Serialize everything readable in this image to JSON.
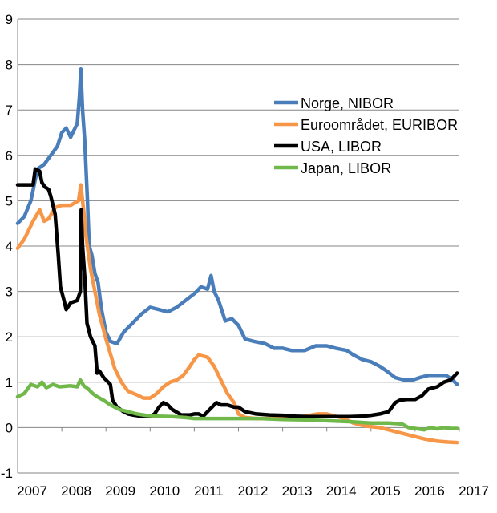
{
  "chart_data": {
    "type": "line",
    "title": "",
    "xlabel": "",
    "ylabel": "",
    "xlim": [
      2007,
      2017
    ],
    "ylim": [
      -1,
      9
    ],
    "yticks": [
      "-1",
      "0",
      "1",
      "2",
      "3",
      "4",
      "5",
      "6",
      "7",
      "8",
      "9"
    ],
    "xticks": [
      "2007",
      "2008",
      "2009",
      "2010",
      "2011",
      "2012",
      "2013",
      "2014",
      "2015",
      "2016",
      "2017"
    ],
    "grid": "horizontal",
    "legend_position": "upper-right",
    "series": [
      {
        "name": "Norge, NIBOR",
        "color": "#4a7ebb",
        "points": [
          [
            2007.0,
            4.5
          ],
          [
            2007.15,
            4.65
          ],
          [
            2007.3,
            5.0
          ],
          [
            2007.45,
            5.7
          ],
          [
            2007.6,
            5.8
          ],
          [
            2007.75,
            6.0
          ],
          [
            2007.9,
            6.2
          ],
          [
            2008.0,
            6.5
          ],
          [
            2008.1,
            6.6
          ],
          [
            2008.2,
            6.4
          ],
          [
            2008.3,
            6.6
          ],
          [
            2008.35,
            6.7
          ],
          [
            2008.4,
            7.3
          ],
          [
            2008.43,
            7.9
          ],
          [
            2008.47,
            7.0
          ],
          [
            2008.52,
            6.3
          ],
          [
            2008.58,
            5.0
          ],
          [
            2008.62,
            4.0
          ],
          [
            2008.68,
            3.8
          ],
          [
            2008.75,
            3.4
          ],
          [
            2008.82,
            3.2
          ],
          [
            2008.9,
            2.6
          ],
          [
            2009.0,
            2.1
          ],
          [
            2009.1,
            1.9
          ],
          [
            2009.25,
            1.85
          ],
          [
            2009.4,
            2.1
          ],
          [
            2009.6,
            2.3
          ],
          [
            2009.8,
            2.5
          ],
          [
            2010.0,
            2.65
          ],
          [
            2010.2,
            2.6
          ],
          [
            2010.4,
            2.55
          ],
          [
            2010.6,
            2.65
          ],
          [
            2010.8,
            2.8
          ],
          [
            2011.0,
            2.95
          ],
          [
            2011.15,
            3.1
          ],
          [
            2011.3,
            3.05
          ],
          [
            2011.38,
            3.35
          ],
          [
            2011.45,
            3.0
          ],
          [
            2011.55,
            2.8
          ],
          [
            2011.7,
            2.35
          ],
          [
            2011.85,
            2.4
          ],
          [
            2012.0,
            2.25
          ],
          [
            2012.15,
            1.95
          ],
          [
            2012.35,
            1.9
          ],
          [
            2012.6,
            1.85
          ],
          [
            2012.8,
            1.75
          ],
          [
            2013.0,
            1.75
          ],
          [
            2013.2,
            1.7
          ],
          [
            2013.5,
            1.7
          ],
          [
            2013.75,
            1.8
          ],
          [
            2014.0,
            1.8
          ],
          [
            2014.2,
            1.75
          ],
          [
            2014.45,
            1.7
          ],
          [
            2014.6,
            1.6
          ],
          [
            2014.8,
            1.5
          ],
          [
            2015.0,
            1.45
          ],
          [
            2015.2,
            1.35
          ],
          [
            2015.35,
            1.25
          ],
          [
            2015.55,
            1.1
          ],
          [
            2015.75,
            1.05
          ],
          [
            2015.95,
            1.05
          ],
          [
            2016.1,
            1.1
          ],
          [
            2016.3,
            1.15
          ],
          [
            2016.5,
            1.15
          ],
          [
            2016.7,
            1.15
          ],
          [
            2016.85,
            1.05
          ],
          [
            2016.95,
            0.95
          ]
        ]
      },
      {
        "name": "Euroområdet, EURIBOR",
        "color": "#f79646",
        "points": [
          [
            2007.0,
            3.95
          ],
          [
            2007.15,
            4.15
          ],
          [
            2007.35,
            4.55
          ],
          [
            2007.5,
            4.8
          ],
          [
            2007.6,
            4.55
          ],
          [
            2007.7,
            4.6
          ],
          [
            2007.85,
            4.85
          ],
          [
            2008.0,
            4.9
          ],
          [
            2008.2,
            4.9
          ],
          [
            2008.38,
            5.0
          ],
          [
            2008.43,
            5.35
          ],
          [
            2008.5,
            4.75
          ],
          [
            2008.55,
            4.2
          ],
          [
            2008.65,
            3.5
          ],
          [
            2008.75,
            3.0
          ],
          [
            2008.85,
            2.5
          ],
          [
            2009.0,
            1.95
          ],
          [
            2009.2,
            1.3
          ],
          [
            2009.35,
            1.0
          ],
          [
            2009.5,
            0.8
          ],
          [
            2009.7,
            0.72
          ],
          [
            2009.85,
            0.65
          ],
          [
            2010.0,
            0.65
          ],
          [
            2010.15,
            0.75
          ],
          [
            2010.3,
            0.9
          ],
          [
            2010.45,
            1.0
          ],
          [
            2010.6,
            1.05
          ],
          [
            2010.75,
            1.15
          ],
          [
            2010.9,
            1.35
          ],
          [
            2011.0,
            1.5
          ],
          [
            2011.1,
            1.6
          ],
          [
            2011.3,
            1.55
          ],
          [
            2011.45,
            1.35
          ],
          [
            2011.6,
            1.05
          ],
          [
            2011.75,
            0.75
          ],
          [
            2011.9,
            0.55
          ],
          [
            2012.0,
            0.3
          ],
          [
            2012.15,
            0.22
          ],
          [
            2012.4,
            0.2
          ],
          [
            2012.7,
            0.2
          ],
          [
            2013.0,
            0.22
          ],
          [
            2013.2,
            0.22
          ],
          [
            2013.5,
            0.25
          ],
          [
            2013.8,
            0.3
          ],
          [
            2014.0,
            0.3
          ],
          [
            2014.2,
            0.25
          ],
          [
            2014.4,
            0.2
          ],
          [
            2014.6,
            0.1
          ],
          [
            2014.8,
            0.05
          ],
          [
            2015.0,
            0.02
          ],
          [
            2015.2,
            0.0
          ],
          [
            2015.4,
            -0.05
          ],
          [
            2015.6,
            -0.1
          ],
          [
            2015.8,
            -0.15
          ],
          [
            2016.0,
            -0.2
          ],
          [
            2016.2,
            -0.25
          ],
          [
            2016.5,
            -0.3
          ],
          [
            2016.75,
            -0.32
          ],
          [
            2016.95,
            -0.33
          ]
        ]
      },
      {
        "name": "USA, LIBOR",
        "color": "#000000",
        "points": [
          [
            2007.0,
            5.35
          ],
          [
            2007.2,
            5.35
          ],
          [
            2007.35,
            5.35
          ],
          [
            2007.4,
            5.7
          ],
          [
            2007.5,
            5.65
          ],
          [
            2007.55,
            5.4
          ],
          [
            2007.62,
            5.3
          ],
          [
            2007.7,
            5.25
          ],
          [
            2007.75,
            5.1
          ],
          [
            2007.85,
            4.7
          ],
          [
            2007.92,
            3.8
          ],
          [
            2007.97,
            3.1
          ],
          [
            2008.05,
            2.8
          ],
          [
            2008.1,
            2.6
          ],
          [
            2008.2,
            2.75
          ],
          [
            2008.35,
            2.8
          ],
          [
            2008.42,
            3.0
          ],
          [
            2008.44,
            4.8
          ],
          [
            2008.47,
            4.0
          ],
          [
            2008.52,
            3.3
          ],
          [
            2008.57,
            2.3
          ],
          [
            2008.65,
            2.0
          ],
          [
            2008.75,
            1.8
          ],
          [
            2008.8,
            1.2
          ],
          [
            2008.85,
            1.25
          ],
          [
            2008.95,
            1.1
          ],
          [
            2009.1,
            0.95
          ],
          [
            2009.15,
            0.6
          ],
          [
            2009.25,
            0.45
          ],
          [
            2009.4,
            0.35
          ],
          [
            2009.5,
            0.3
          ],
          [
            2009.6,
            0.28
          ],
          [
            2009.8,
            0.25
          ],
          [
            2010.0,
            0.25
          ],
          [
            2010.1,
            0.3
          ],
          [
            2010.2,
            0.45
          ],
          [
            2010.3,
            0.55
          ],
          [
            2010.4,
            0.5
          ],
          [
            2010.5,
            0.4
          ],
          [
            2010.7,
            0.28
          ],
          [
            2010.9,
            0.28
          ],
          [
            2011.0,
            0.3
          ],
          [
            2011.1,
            0.3
          ],
          [
            2011.2,
            0.25
          ],
          [
            2011.4,
            0.45
          ],
          [
            2011.5,
            0.55
          ],
          [
            2011.6,
            0.5
          ],
          [
            2011.75,
            0.5
          ],
          [
            2011.9,
            0.45
          ],
          [
            2012.0,
            0.45
          ],
          [
            2012.15,
            0.35
          ],
          [
            2012.4,
            0.3
          ],
          [
            2012.7,
            0.28
          ],
          [
            2013.0,
            0.27
          ],
          [
            2013.3,
            0.25
          ],
          [
            2013.6,
            0.24
          ],
          [
            2013.9,
            0.24
          ],
          [
            2014.2,
            0.24
          ],
          [
            2014.5,
            0.24
          ],
          [
            2014.8,
            0.25
          ],
          [
            2015.0,
            0.27
          ],
          [
            2015.2,
            0.3
          ],
          [
            2015.4,
            0.35
          ],
          [
            2015.55,
            0.55
          ],
          [
            2015.65,
            0.6
          ],
          [
            2015.8,
            0.62
          ],
          [
            2016.0,
            0.62
          ],
          [
            2016.15,
            0.7
          ],
          [
            2016.3,
            0.85
          ],
          [
            2016.5,
            0.9
          ],
          [
            2016.65,
            1.0
          ],
          [
            2016.8,
            1.05
          ],
          [
            2016.9,
            1.15
          ],
          [
            2016.95,
            1.2
          ]
        ]
      },
      {
        "name": "Japan, LIBOR",
        "color": "#71b84a",
        "points": [
          [
            2007.0,
            0.68
          ],
          [
            2007.15,
            0.75
          ],
          [
            2007.3,
            0.95
          ],
          [
            2007.45,
            0.9
          ],
          [
            2007.55,
            1.0
          ],
          [
            2007.65,
            0.88
          ],
          [
            2007.8,
            0.95
          ],
          [
            2007.95,
            0.9
          ],
          [
            2008.2,
            0.92
          ],
          [
            2008.35,
            0.9
          ],
          [
            2008.42,
            1.05
          ],
          [
            2008.5,
            0.92
          ],
          [
            2008.6,
            0.85
          ],
          [
            2008.7,
            0.75
          ],
          [
            2008.8,
            0.68
          ],
          [
            2008.95,
            0.6
          ],
          [
            2009.1,
            0.5
          ],
          [
            2009.3,
            0.4
          ],
          [
            2009.5,
            0.35
          ],
          [
            2009.7,
            0.3
          ],
          [
            2009.9,
            0.27
          ],
          [
            2010.2,
            0.25
          ],
          [
            2010.5,
            0.24
          ],
          [
            2010.8,
            0.22
          ],
          [
            2011.0,
            0.2
          ],
          [
            2011.5,
            0.2
          ],
          [
            2012.0,
            0.2
          ],
          [
            2012.5,
            0.2
          ],
          [
            2013.0,
            0.18
          ],
          [
            2013.5,
            0.17
          ],
          [
            2014.0,
            0.15
          ],
          [
            2014.5,
            0.13
          ],
          [
            2015.0,
            0.1
          ],
          [
            2015.4,
            0.1
          ],
          [
            2015.7,
            0.08
          ],
          [
            2015.85,
            0.0
          ],
          [
            2016.0,
            -0.02
          ],
          [
            2016.2,
            -0.05
          ],
          [
            2016.35,
            0.0
          ],
          [
            2016.5,
            -0.03
          ],
          [
            2016.65,
            0.0
          ],
          [
            2016.8,
            -0.02
          ],
          [
            2016.95,
            -0.02
          ]
        ]
      }
    ]
  }
}
